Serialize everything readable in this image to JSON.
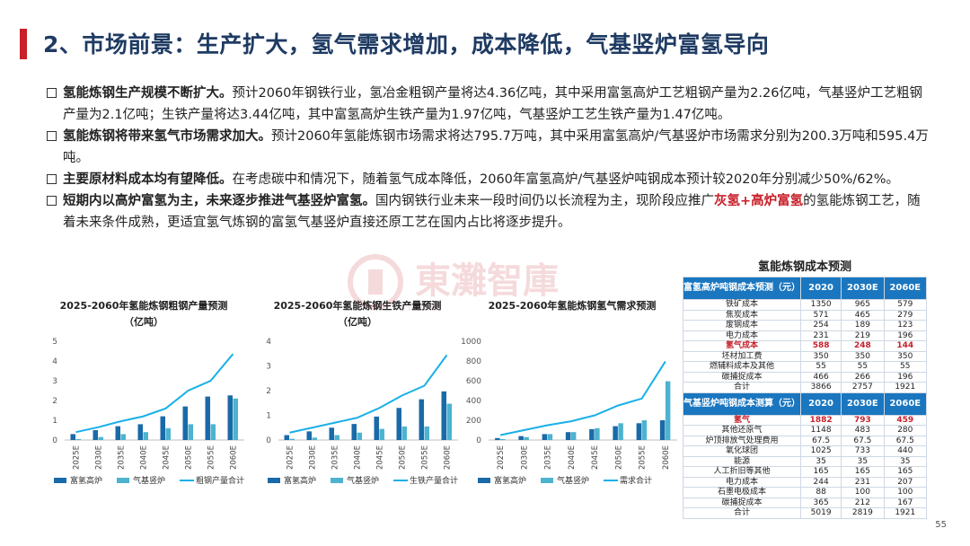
{
  "title": "2、市场前景：生产扩大，氢气需求增加，成本降低，气基竖炉富氢导向",
  "bullets": [
    {
      "lead": "氢能炼钢生产规模不断扩大。",
      "text": "预计2060年钢铁行业，氢冶金粗钢产量将达4.36亿吨，其中采用富氢高炉工艺粗钢产量为2.26亿吨，气基竖炉工艺粗钢产量为2.1亿吨；生铁产量将达3.44亿吨，其中富氢高炉生铁产量为1.97亿吨，气基竖炉工艺生铁产量为1.47亿吨。"
    },
    {
      "lead": "氢能炼钢将带来氢气市场需求加大。",
      "text": "预计2060年氢能炼钢市场需求将达795.7万吨，其中采用富氢高炉/气基竖炉市场需求分别为200.3万吨和595.4万吨。"
    },
    {
      "lead": "主要原材料成本均有望降低。",
      "text": "在考虑碳中和情况下，随着氢气成本降低，2060年富氢高炉/气基竖炉吨钢成本预计较2020年分别减少50%/62%。"
    },
    {
      "lead": "短期内以高炉富氢为主，未来逐步推进气基竖炉富氢。",
      "text_before": "国内钢铁行业未来一段时间仍以长流程为主，现阶段应推广",
      "highlight": "灰氢+高炉富氢",
      "text_after": "的氢能炼钢工艺，随着未来条件成熟，更适宜氢气炼钢的富氢气基竖炉直接还原工艺在国内占比将逐步提升。"
    }
  ],
  "watermark": {
    "text": "東灘智庫",
    "sub": "NGTAN"
  },
  "colors": {
    "dark": "#1a6aa8",
    "light": "#4db3cf",
    "line": "#19b0e8",
    "accent": "#c8202a",
    "title": "#1f3b63"
  },
  "chart_data": [
    {
      "type": "bar+line",
      "title": "2025-2060年氢能炼钢粗钢产量预测",
      "subtitle": "（亿吨）",
      "categories": [
        "2025E",
        "2030E",
        "2035E",
        "2040E",
        "2045E",
        "2050E",
        "2055E",
        "2060E"
      ],
      "ylim": [
        0,
        5
      ],
      "yticks": [
        0,
        1,
        2,
        3,
        4,
        5
      ],
      "series": [
        {
          "name": "富氢高炉",
          "kind": "bar",
          "values": [
            0.3,
            0.5,
            0.7,
            0.8,
            1.2,
            1.7,
            2.2,
            2.26
          ]
        },
        {
          "name": "气基竖炉",
          "kind": "bar",
          "values": [
            0.05,
            0.15,
            0.3,
            0.4,
            0.6,
            0.8,
            0.8,
            2.1
          ]
        },
        {
          "name": "粗钢产量合计",
          "kind": "line",
          "values": [
            0.4,
            0.65,
            0.95,
            1.2,
            1.6,
            2.5,
            3.0,
            4.36
          ]
        }
      ]
    },
    {
      "type": "bar+line",
      "title": "2025-2060年氢能炼钢生铁产量预测",
      "subtitle": "（亿吨）",
      "categories": [
        "2025E",
        "2030E",
        "2035E",
        "2040E",
        "2045E",
        "2050E",
        "2055E",
        "2060E"
      ],
      "ylim": [
        0,
        4
      ],
      "yticks": [
        0,
        1,
        2,
        3,
        4
      ],
      "series": [
        {
          "name": "富氢高炉",
          "kind": "bar",
          "values": [
            0.2,
            0.35,
            0.5,
            0.65,
            0.95,
            1.3,
            1.65,
            1.97
          ]
        },
        {
          "name": "气基竖炉",
          "kind": "bar",
          "values": [
            0.05,
            0.1,
            0.2,
            0.3,
            0.45,
            0.55,
            0.55,
            1.47
          ]
        },
        {
          "name": "生铁产量合计",
          "kind": "line",
          "values": [
            0.3,
            0.5,
            0.7,
            0.9,
            1.3,
            1.8,
            2.2,
            3.44
          ]
        }
      ]
    },
    {
      "type": "bar+line",
      "title": "2025-2060年氢能炼钢氢气需求预测",
      "subtitle": "",
      "categories": [
        "2025E",
        "2030E",
        "2035E",
        "2040E",
        "2045E",
        "2050E",
        "2055E",
        "2060E"
      ],
      "ylim": [
        0,
        1000
      ],
      "yticks": [
        0,
        200,
        400,
        600,
        800,
        1000
      ],
      "series": [
        {
          "name": "富氢高炉",
          "kind": "bar",
          "values": [
            20,
            40,
            60,
            80,
            110,
            140,
            170,
            200
          ]
        },
        {
          "name": "气基竖炉",
          "kind": "bar",
          "values": [
            10,
            30,
            60,
            80,
            120,
            170,
            200,
            595
          ]
        },
        {
          "name": "需求合计",
          "kind": "line",
          "values": [
            50,
            100,
            150,
            190,
            250,
            350,
            420,
            796
          ]
        }
      ]
    }
  ],
  "cost_table": {
    "title": "氢能炼钢成本预测",
    "sections": [
      {
        "header": [
          "富氢高炉吨钢成本预测（元）",
          "2020",
          "2030E",
          "2060E"
        ],
        "rows": [
          {
            "cells": [
              "铁矿成本",
              "1350",
              "965",
              "579"
            ]
          },
          {
            "cells": [
              "焦炭成本",
              "571",
              "465",
              "279"
            ]
          },
          {
            "cells": [
              "废钢成本",
              "254",
              "189",
              "123"
            ]
          },
          {
            "cells": [
              "电力成本",
              "231",
              "219",
              "196"
            ]
          },
          {
            "cells": [
              "氢气成本",
              "588",
              "248",
              "144"
            ],
            "highlight": true
          },
          {
            "cells": [
              "坯材加工费",
              "350",
              "350",
              "350"
            ]
          },
          {
            "cells": [
              "燃辅料成本及其他",
              "55",
              "55",
              "55"
            ]
          },
          {
            "cells": [
              "碳捕捉成本",
              "466",
              "266",
              "196"
            ]
          },
          {
            "cells": [
              "合计",
              "3866",
              "2757",
              "1921"
            ]
          }
        ]
      },
      {
        "header": [
          "气基竖炉吨钢成本测算（元）",
          "2020",
          "2030E",
          "2060E"
        ],
        "rows": [
          {
            "cells": [
              "氢气",
              "1882",
              "793",
              "459"
            ],
            "highlight": true
          },
          {
            "cells": [
              "其他还原气",
              "1148",
              "483",
              "280"
            ]
          },
          {
            "cells": [
              "炉顶排放气处理费用",
              "67.5",
              "67.5",
              "67.5"
            ]
          },
          {
            "cells": [
              "氧化球团",
              "1025",
              "733",
              "440"
            ]
          },
          {
            "cells": [
              "能源",
              "35",
              "35",
              "35"
            ]
          },
          {
            "cells": [
              "人工折旧等其他",
              "165",
              "165",
              "165"
            ]
          },
          {
            "cells": [
              "电力成本",
              "244",
              "231",
              "207"
            ]
          },
          {
            "cells": [
              "石墨电极成本",
              "88",
              "100",
              "100"
            ]
          },
          {
            "cells": [
              "碳捕捉成本",
              "365",
              "212",
              "167"
            ]
          },
          {
            "cells": [
              "合计",
              "5019",
              "2819",
              "1921"
            ]
          }
        ]
      }
    ]
  },
  "page_number": "55"
}
